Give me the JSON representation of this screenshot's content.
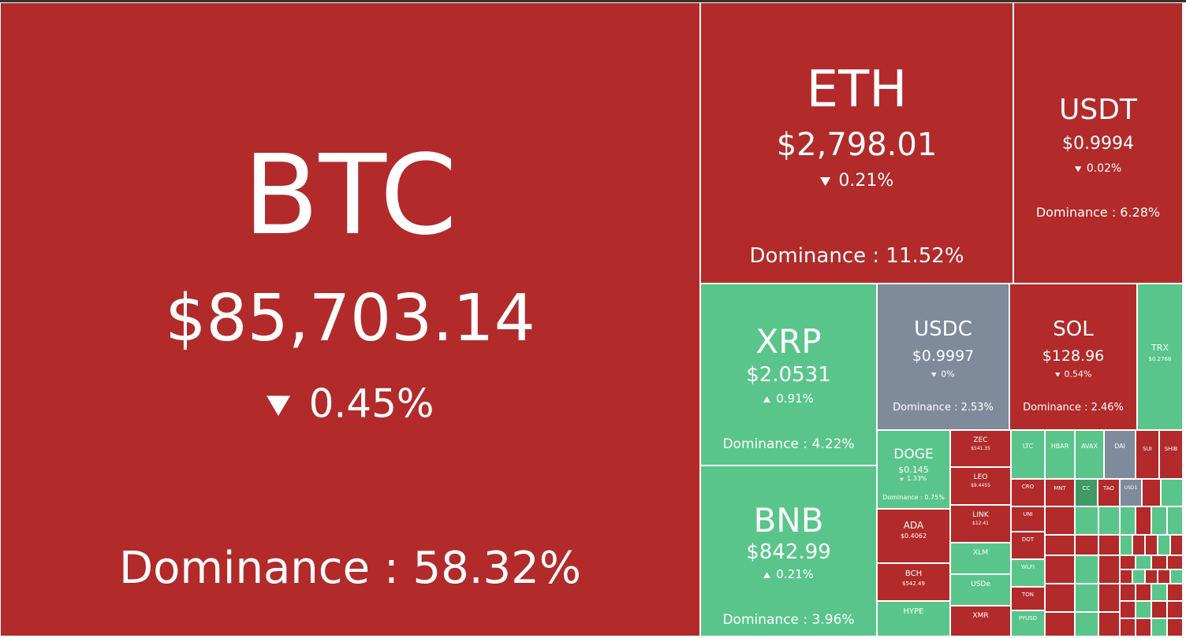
{
  "tiles": [
    {
      "symbol": "BTC",
      "price": "$85,703.14",
      "change": "0.45%",
      "direction": "down",
      "dominance": "Dominance : 58.32%",
      "color": "#b22a2a"
    },
    {
      "symbol": "ETH",
      "price": "$2,798.01",
      "change": "0.21%",
      "direction": "down",
      "dominance": "Dominance : 11.52%",
      "color": "#b22a2a"
    },
    {
      "symbol": "USDT",
      "price": "$0.9994",
      "change": "0.02%",
      "direction": "down",
      "dominance": "Dominance : 6.28%",
      "color": "#b22a2a"
    },
    {
      "symbol": "XRP",
      "price": "$2.0531",
      "change": "0.91%",
      "direction": "up",
      "dominance": "Dominance : 4.22%",
      "color": "#5ac58a"
    },
    {
      "symbol": "BNB",
      "price": "$842.99",
      "change": "0.21%",
      "direction": "up",
      "dominance": "Dominance : 3.96%",
      "color": "#5ac58a"
    },
    {
      "symbol": "USDC",
      "price": "$0.9997",
      "change": "0%",
      "direction": "down",
      "dominance": "Dominance : 2.53%",
      "color": "#7f8a9b"
    },
    {
      "symbol": "SOL",
      "price": "$128.96",
      "change": "0.54%",
      "direction": "down",
      "dominance": "Dominance : 2.46%",
      "color": "#b22a2a"
    },
    {
      "symbol": "TRX",
      "price": "$0.2768",
      "color": "#5ac58a"
    },
    {
      "symbol": "DOGE",
      "price": "$0.145",
      "change": "1.33%",
      "direction": "down",
      "dominance": "Dominance : 0.75%",
      "color": "#5ac58a"
    },
    {
      "symbol": "ADA",
      "price": "$0.4062",
      "color": "#b22a2a"
    },
    {
      "symbol": "BCH",
      "price": "$542.49",
      "color": "#b22a2a"
    },
    {
      "symbol": "HYPE",
      "color": "#5ac58a"
    },
    {
      "symbol": "ZEC",
      "price": "$541.35",
      "color": "#b22a2a"
    },
    {
      "symbol": "LEO",
      "price": "$9.4455",
      "color": "#b22a2a"
    },
    {
      "symbol": "LINK",
      "price": "$12.41",
      "color": "#b22a2a"
    },
    {
      "symbol": "XLM",
      "color": "#5ac58a"
    },
    {
      "symbol": "USDe",
      "color": "#5ac58a"
    },
    {
      "symbol": "XMR",
      "color": "#b22a2a"
    },
    {
      "symbol": "LTC",
      "color": "#5ac58a"
    },
    {
      "symbol": "HBAR",
      "color": "#5ac58a"
    },
    {
      "symbol": "AVAX",
      "color": "#5ac58a"
    },
    {
      "symbol": "DAI",
      "color": "#7f8a9b"
    },
    {
      "symbol": "SUI",
      "color": "#b22a2a"
    },
    {
      "symbol": "SHIB",
      "color": "#b22a2a"
    },
    {
      "symbol": "CRO",
      "color": "#b22a2a"
    },
    {
      "symbol": "MNT",
      "color": "#b22a2a"
    },
    {
      "symbol": "CC",
      "color": "#3f9a66"
    },
    {
      "symbol": "TAO",
      "color": "#b22a2a"
    },
    {
      "symbol": "USD1",
      "color": "#7f8a9b"
    },
    {
      "symbol": "UNI",
      "color": "#b22a2a"
    },
    {
      "symbol": "DOT",
      "color": "#b22a2a"
    },
    {
      "symbol": "WLFI",
      "color": "#5ac58a"
    },
    {
      "symbol": "TON",
      "color": "#b22a2a"
    },
    {
      "symbol": "PYUSD",
      "color": "#5ac58a"
    }
  ]
}
